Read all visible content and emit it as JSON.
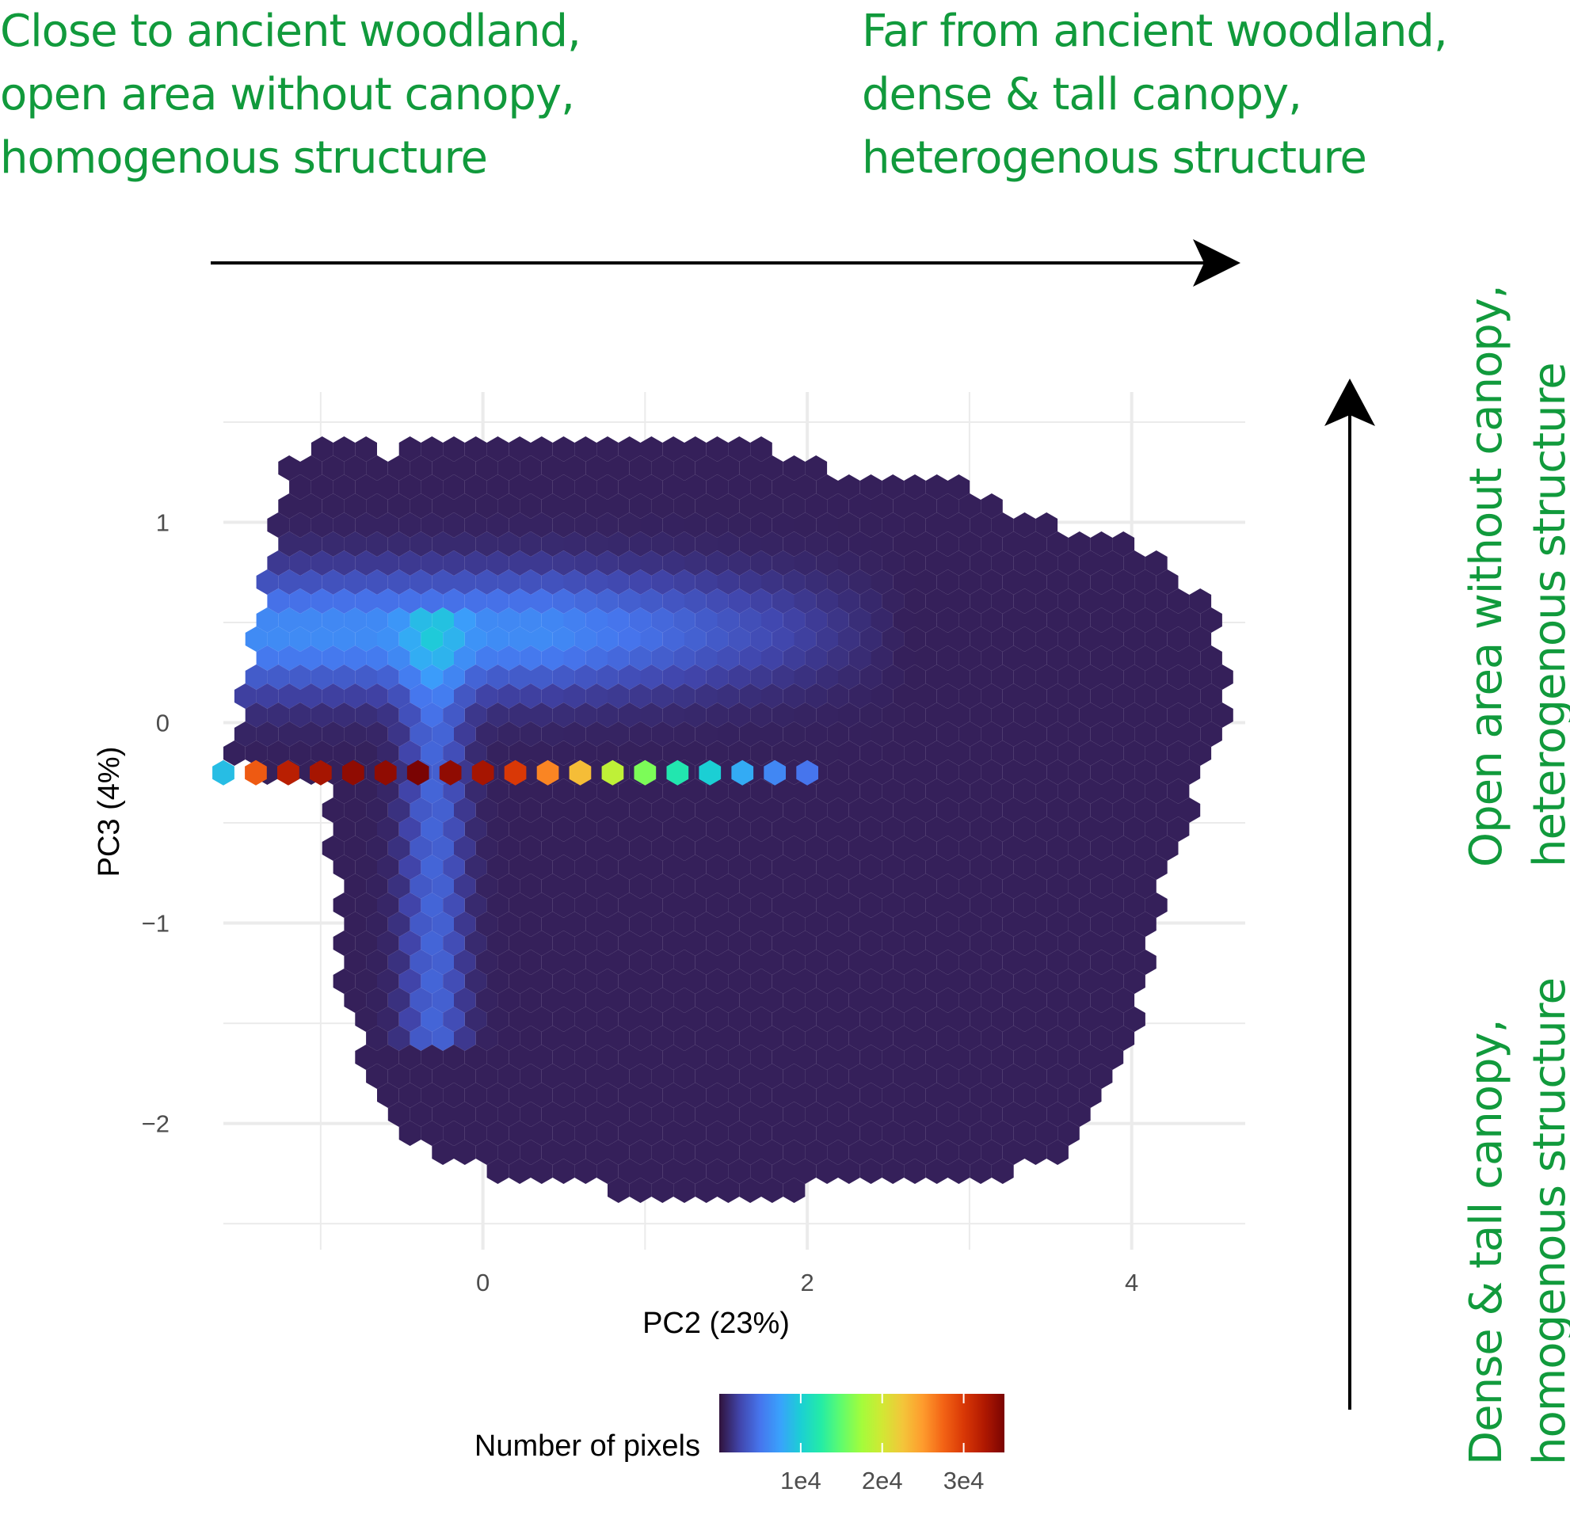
{
  "annotations": {
    "top_left": [
      "Close to ancient woodland,",
      "open area without canopy,",
      "homogenous structure"
    ],
    "top_right": [
      "Far from ancient woodland,",
      "dense & tall canopy,",
      "heterogenous structure"
    ],
    "right_upper": [
      "Open area without canopy,",
      "heterogenous structure"
    ],
    "right_lower": [
      "Dense & tall canopy,",
      "homogenous structure"
    ]
  },
  "colors": {
    "annotation_text": "#119a3c",
    "arrow": "#000000",
    "gridline": "#ebebeb",
    "scale": [
      "#30123b",
      "#4145ab",
      "#4675ed",
      "#39a2fc",
      "#1bcfd4",
      "#24eca6",
      "#61fc6c",
      "#a4fc3b",
      "#d1e834",
      "#f3c63a",
      "#fe9b2d",
      "#f36315",
      "#d93806",
      "#b11901",
      "#7a0403"
    ]
  },
  "chart_data": {
    "type": "heatmap",
    "subtype": "hexbin",
    "xlabel": "PC2 (23%)",
    "ylabel": "PC3 (4%)",
    "xlim": [
      -1.6,
      4.7
    ],
    "ylim": [
      -2.63,
      1.65
    ],
    "xticks": [
      0,
      2,
      4
    ],
    "xtick_labels": [
      "0",
      "2",
      "4"
    ],
    "yticks": [
      1,
      0,
      -1,
      -2
    ],
    "ytick_labels": [
      "1",
      "0",
      "−1",
      "−2"
    ],
    "grid": true,
    "legend": {
      "title": "Number of pixels",
      "position": "bottom",
      "range": [
        0,
        35000
      ],
      "ticks": [
        10000,
        20000,
        30000
      ],
      "tick_labels": [
        "1e4",
        "2e4",
        "3e4"
      ]
    },
    "dense_band": {
      "y": -0.25,
      "x": [
        -1.6,
        -1.4,
        -1.2,
        -1.0,
        -0.8,
        -0.6,
        -0.4,
        -0.2,
        0.0,
        0.2,
        0.4,
        0.6,
        0.8,
        1.0,
        1.2,
        1.4,
        1.6,
        1.8,
        2.0
      ],
      "counts": [
        9000,
        28000,
        32000,
        33000,
        34000,
        34000,
        35000,
        34000,
        33000,
        30000,
        26000,
        23000,
        19000,
        16000,
        12000,
        10000,
        8000,
        6000,
        5000
      ]
    },
    "outline": {
      "x": [
        -1.55,
        -1.2,
        -0.9,
        -0.5,
        -0.3,
        0.3,
        0.9,
        1.6,
        2.0,
        2.6,
        3.0,
        3.4,
        4.0,
        4.25,
        4.5,
        4.6,
        4.4,
        4.2,
        4.1,
        4.0,
        3.7,
        3.5,
        3.1,
        2.3,
        1.6,
        1.0,
        0.2,
        -0.3,
        -0.7,
        -0.9,
        -0.95,
        -1.4,
        -1.55
      ],
      "y": [
        -0.2,
        1.35,
        1.4,
        1.35,
        1.45,
        1.4,
        1.45,
        1.4,
        1.3,
        1.2,
        1.2,
        1.0,
        0.9,
        0.75,
        0.55,
        0.0,
        -0.35,
        -0.75,
        -1.2,
        -1.6,
        -2.05,
        -2.2,
        -2.28,
        -2.3,
        -2.38,
        -2.38,
        -2.25,
        -2.2,
        -1.8,
        -1.2,
        -0.3,
        -0.25,
        -0.2
      ]
    }
  }
}
